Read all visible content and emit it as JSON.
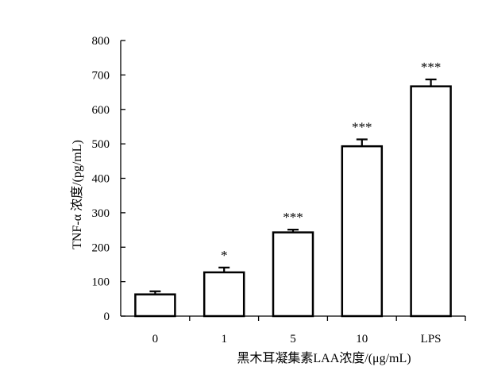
{
  "chart_data": {
    "type": "bar",
    "title": "",
    "xlabel": "黑木耳凝集素LAA浓度/(μg/mL)",
    "ylabel": "TNF-α 浓度/(pg/mL)",
    "categories": [
      "0",
      "1",
      "5",
      "10",
      "LPS"
    ],
    "values": [
      63,
      127,
      243,
      493,
      667
    ],
    "errors": [
      9,
      14,
      8,
      20,
      20
    ],
    "significance": [
      "",
      "*",
      "***",
      "***",
      "***"
    ],
    "ylim": [
      0,
      800
    ],
    "yticks": [
      0,
      100,
      200,
      300,
      400,
      500,
      600,
      700,
      800
    ],
    "grid": false,
    "legend": "none",
    "bar_fill": "#ffffff",
    "bar_stroke": "#000000"
  }
}
